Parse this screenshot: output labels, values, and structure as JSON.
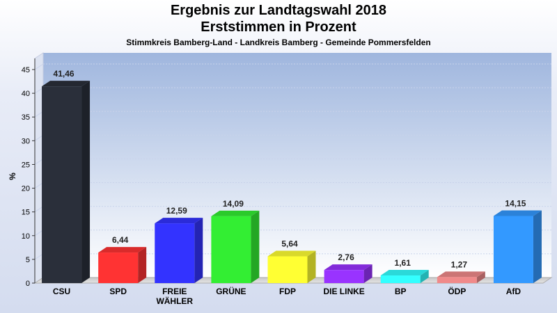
{
  "header": {
    "title_line1": "Ergebnis zur Landtagswahl 2018",
    "title_line2": "Erststimmen in Prozent",
    "subtitle": "Stimmkreis Bamberg-Land - Landkreis Bamberg - Gemeinde Pommersfelden"
  },
  "chart_data": {
    "type": "bar",
    "categories": [
      "CSU",
      "SPD",
      "FREIE WÄHLER",
      "GRÜNE",
      "FDP",
      "DIE LINKE",
      "BP",
      "ÖDP",
      "AfD"
    ],
    "category_lines": [
      [
        "CSU"
      ],
      [
        "SPD"
      ],
      [
        "FREIE",
        "WÄHLER"
      ],
      [
        "GRÜNE"
      ],
      [
        "FDP"
      ],
      [
        "DIE LINKE"
      ],
      [
        "BP"
      ],
      [
        "ÖDP"
      ],
      [
        "AfD"
      ]
    ],
    "values": [
      41.46,
      6.44,
      12.59,
      14.09,
      5.64,
      2.76,
      1.61,
      1.27,
      14.15
    ],
    "value_labels": [
      "41,46",
      "6,44",
      "12,59",
      "14,09",
      "5,64",
      "2,76",
      "1,61",
      "1,27",
      "14,15"
    ],
    "colors": [
      "#2a2f3a",
      "#ff3333",
      "#3333ff",
      "#33ee33",
      "#ffff33",
      "#9933ff",
      "#33ffff",
      "#f08a8a",
      "#3399ff"
    ],
    "ylabel": "%",
    "ylim": [
      0,
      45
    ],
    "yticks": [
      0,
      5,
      10,
      15,
      20,
      25,
      30,
      35,
      40,
      45
    ],
    "grid": true,
    "legend": "none"
  }
}
